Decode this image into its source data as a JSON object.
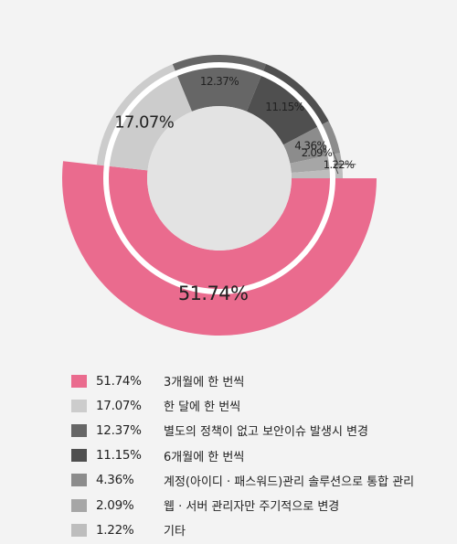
{
  "chart_data": {
    "type": "pie",
    "title": "",
    "series": [
      {
        "name": "3개월에 한 번씩",
        "value": 51.74,
        "label": "51.74%",
        "color": "#ea6b8e"
      },
      {
        "name": "한 달에 한 번씩",
        "value": 17.07,
        "label": "17.07%",
        "color": "#cccccc"
      },
      {
        "name": "별도의 정책이 없고 보안이슈 발생시 변경",
        "value": 12.37,
        "label": "12.37%",
        "color": "#666666"
      },
      {
        "name": "6개월에 한 번씩",
        "value": 11.15,
        "label": "11.15%",
        "color": "#4f4f4f"
      },
      {
        "name": "계정(아이디 · 패스워드)관리 솔루션으로 통합 관리",
        "value": 4.36,
        "label": "4.36%",
        "color": "#8c8c8c"
      },
      {
        "name": "웹 · 서버 관리자만 주기적으로 변경",
        "value": 2.09,
        "label": "2.09%",
        "color": "#a6a6a6"
      },
      {
        "name": "기타",
        "value": 1.22,
        "label": "1.22%",
        "color": "#bdbdbd"
      }
    ],
    "legend_position": "bottom"
  }
}
